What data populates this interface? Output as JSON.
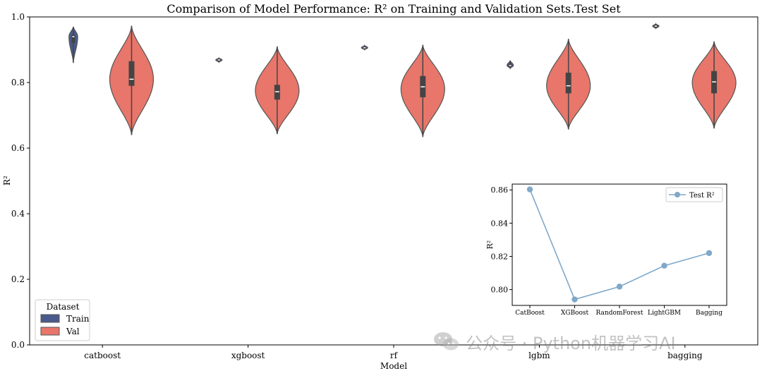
{
  "chart_data": [
    {
      "type": "violin",
      "title": "Comparison of Model Performance: R² on Training and Validation Sets.Test Set",
      "xlabel": "Model",
      "ylabel": "R²",
      "ylim": [
        0.0,
        1.0
      ],
      "yticks": [
        "0.0",
        "0.2",
        "0.4",
        "0.6",
        "0.8",
        "1.0"
      ],
      "categories": [
        "catboost",
        "xgboost",
        "rf",
        "lgbm",
        "bagging"
      ],
      "legend": {
        "title": "Dataset",
        "entries": [
          "Train",
          "Val"
        ],
        "position": "lower-left"
      },
      "colors": {
        "Train": "#4a5a8c",
        "Val": "#e8766a",
        "edge": "#555555",
        "box": "#444444"
      },
      "series": [
        {
          "name": "Train",
          "violins": [
            {
              "min": 0.86,
              "q1": 0.92,
              "median": 0.94,
              "q3": 0.945,
              "max": 0.97
            },
            {
              "min": 0.862,
              "q1": 0.866,
              "median": 0.869,
              "q3": 0.871,
              "max": 0.875
            },
            {
              "min": 0.9,
              "q1": 0.903,
              "median": 0.906,
              "q3": 0.909,
              "max": 0.913
            },
            {
              "min": 0.843,
              "q1": 0.848,
              "median": 0.852,
              "q3": 0.857,
              "max": 0.867
            },
            {
              "min": 0.965,
              "q1": 0.969,
              "median": 0.972,
              "q3": 0.975,
              "max": 0.979
            }
          ]
        },
        {
          "name": "Val",
          "violins": [
            {
              "min": 0.64,
              "q1": 0.79,
              "median": 0.81,
              "q3": 0.865,
              "max": 0.973,
              "mode": 0.81
            },
            {
              "min": 0.643,
              "q1": 0.748,
              "median": 0.772,
              "q3": 0.793,
              "max": 0.91,
              "mode": 0.775
            },
            {
              "min": 0.634,
              "q1": 0.755,
              "median": 0.787,
              "q3": 0.82,
              "max": 0.915,
              "mode": 0.78
            },
            {
              "min": 0.657,
              "q1": 0.767,
              "median": 0.79,
              "q3": 0.83,
              "max": 0.933,
              "mode": 0.79
            },
            {
              "min": 0.66,
              "q1": 0.767,
              "median": 0.802,
              "q3": 0.835,
              "max": 0.925,
              "mode": 0.8
            }
          ]
        }
      ]
    },
    {
      "type": "line",
      "role": "inset",
      "ylabel": "R²",
      "categories": [
        "CatBoost",
        "XGBoost",
        "RandomForest",
        "LightGBM",
        "Bagging"
      ],
      "series": [
        {
          "name": "Test R²",
          "values": [
            0.8603,
            0.7941,
            0.8018,
            0.8144,
            0.822
          ]
        }
      ],
      "ylim": [
        0.7905,
        0.8635
      ],
      "yticks": [
        "0.80",
        "0.82",
        "0.84",
        "0.86"
      ],
      "legend_position": "top-right",
      "color": "#7fa8c9"
    }
  ],
  "watermark": {
    "text": "公众号 · Python机器学习AI"
  }
}
